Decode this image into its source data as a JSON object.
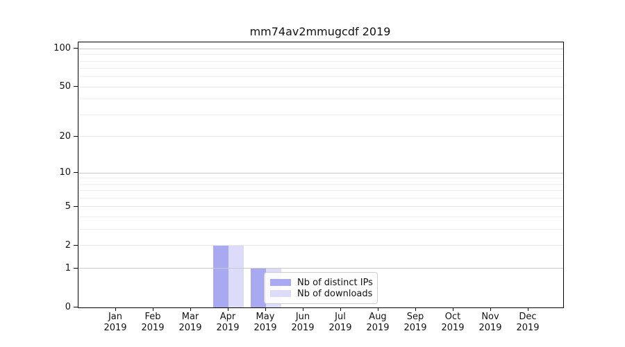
{
  "chart_data": {
    "type": "bar",
    "title": "mm74av2mmugcdf 2019",
    "x_months": [
      "Jan",
      "Feb",
      "Mar",
      "Apr",
      "May",
      "Jun",
      "Jul",
      "Aug",
      "Sep",
      "Oct",
      "Nov",
      "Dec"
    ],
    "x_year": "2019",
    "series": [
      {
        "name": "Nb of distinct IPs",
        "key": "distinct-ips",
        "color": "#a9a9f2",
        "values": [
          0,
          0,
          0,
          2,
          1,
          0,
          0,
          0,
          0,
          0,
          0,
          0
        ]
      },
      {
        "name": "Nb of downloads",
        "key": "downloads",
        "color": "#dcdcfa",
        "values": [
          0,
          0,
          0,
          2,
          1,
          0,
          0,
          0,
          0,
          0,
          0,
          0
        ]
      }
    ],
    "yscale": "log1p",
    "ylim": [
      0,
      113
    ],
    "yticks": [
      0,
      1,
      2,
      5,
      10,
      20,
      50,
      100
    ],
    "yticks_minor": [
      3,
      4,
      6,
      7,
      8,
      9,
      30,
      40,
      60,
      70,
      80,
      90
    ],
    "grid": "on",
    "legend_position": "inside-bottom-center"
  },
  "colors": {
    "grid_decade": "#c9c9c9",
    "grid_major": "#e6e6e6",
    "grid_minor": "#eeeeee"
  }
}
